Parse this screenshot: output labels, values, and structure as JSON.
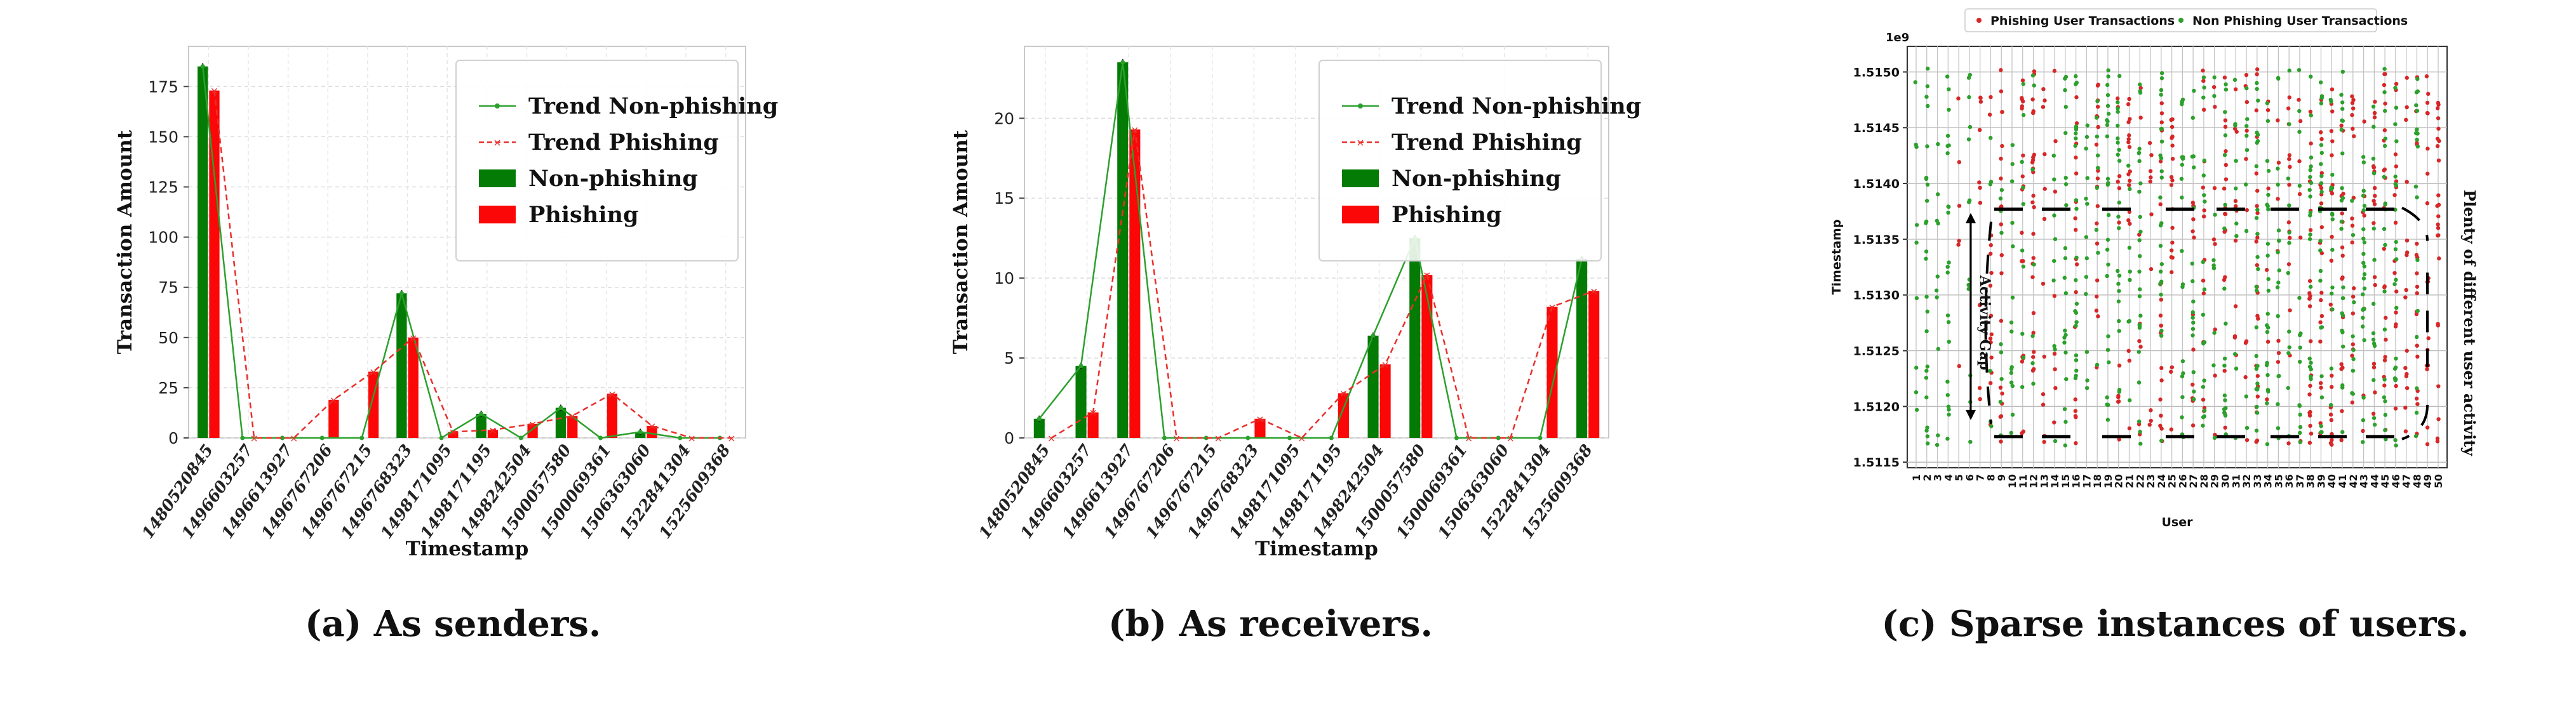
{
  "panels": [
    {
      "caption": "(a) As senders.",
      "chart_data": {
        "type": "bar",
        "categories": [
          "1480520845",
          "1496603257",
          "1496613927",
          "1496767206",
          "1496767215",
          "1496768323",
          "1498171095",
          "1498171195",
          "1498242504",
          "1500057580",
          "1500069361",
          "1506363060",
          "1522841304",
          "1525609368"
        ],
        "series": [
          {
            "name": "Non-phishing",
            "type": "bar",
            "values": [
              185,
              0,
              0,
              0,
              0,
              72,
              0,
              12,
              0,
              15,
              0,
              3,
              0,
              0
            ]
          },
          {
            "name": "Phishing",
            "type": "bar",
            "values": [
              173,
              0,
              0,
              19,
              33,
              50,
              3,
              4,
              7,
              11,
              22,
              6,
              0,
              0
            ]
          },
          {
            "name": "Trend Non-phishing",
            "type": "line",
            "values": [
              185,
              0,
              0,
              0,
              0,
              72,
              0,
              12,
              0,
              15,
              0,
              3,
              0,
              0
            ]
          },
          {
            "name": "Trend Phishing",
            "type": "line",
            "values": [
              173,
              0,
              0,
              19,
              33,
              50,
              3,
              4,
              7,
              11,
              22,
              6,
              0,
              0
            ]
          }
        ],
        "xlabel": "Timestamp",
        "ylabel": "Transaction Amount",
        "ylim": [
          0,
          195
        ],
        "yticks": [
          0,
          25,
          50,
          75,
          100,
          125,
          150,
          175
        ],
        "grid": true,
        "legend_position": "top-right"
      }
    },
    {
      "caption": "(b) As receivers.",
      "chart_data": {
        "type": "bar",
        "categories": [
          "1480520845",
          "1496603257",
          "1496613927",
          "1496767206",
          "1496767215",
          "1496768323",
          "1498171095",
          "1498171195",
          "1498242504",
          "1500057580",
          "1500069361",
          "1506363060",
          "1522841304",
          "1525609368"
        ],
        "series": [
          {
            "name": "Non-phishing",
            "type": "bar",
            "values": [
              1.2,
              4.5,
              23.5,
              0,
              0,
              0,
              0,
              0,
              6.4,
              12.5,
              0,
              0,
              0,
              11.2
            ]
          },
          {
            "name": "Phishing",
            "type": "bar",
            "values": [
              0,
              1.6,
              19.3,
              0,
              0,
              1.2,
              0,
              2.8,
              4.6,
              10.2,
              0,
              0,
              8.2,
              9.2
            ]
          },
          {
            "name": "Trend Non-phishing",
            "type": "line",
            "values": [
              1.2,
              4.5,
              23.5,
              0,
              0,
              0,
              0,
              0,
              6.4,
              12.5,
              0,
              0,
              0,
              11.2
            ]
          },
          {
            "name": "Trend Phishing",
            "type": "line",
            "values": [
              0,
              1.6,
              19.3,
              0,
              0,
              1.2,
              0,
              2.8,
              4.6,
              10.2,
              0,
              0,
              8.2,
              9.2
            ]
          }
        ],
        "xlabel": "Timestamp",
        "ylabel": "Transaction Amount",
        "ylim": [
          0,
          24.5
        ],
        "yticks": [
          0,
          5,
          10,
          15,
          20
        ],
        "grid": true,
        "legend_position": "top-right"
      }
    },
    {
      "caption": "(c) Sparse instances of users.",
      "chart_data": {
        "type": "scatter",
        "xlabel": "User",
        "ylabel": "Timestamp",
        "y_offset_label": "1e9",
        "x_range": [
          1,
          50
        ],
        "xticks": [
          "1",
          "2",
          "3",
          "4",
          "5",
          "6",
          "7",
          "8",
          "9",
          "10",
          "11",
          "12",
          "13",
          "14",
          "15",
          "16",
          "17",
          "18",
          "19",
          "20",
          "21",
          "22",
          "23",
          "24",
          "25",
          "26",
          "27",
          "28",
          "29",
          "30",
          "31",
          "32",
          "33",
          "34",
          "35",
          "36",
          "37",
          "38",
          "39",
          "40",
          "41",
          "42",
          "43",
          "44",
          "45",
          "46",
          "47",
          "48",
          "49",
          "50"
        ],
        "ylim": [
          1.51145,
          1.51523
        ],
        "yticks": [
          "1.5115",
          "1.5120",
          "1.5125",
          "1.5130",
          "1.5135",
          "1.5140",
          "1.5145",
          "1.5150"
        ],
        "ytick_values": [
          1.5115,
          1.512,
          1.5125,
          1.513,
          1.5135,
          1.514,
          1.5145,
          1.515
        ],
        "grid": true,
        "legend_position": "top-center",
        "series": [
          {
            "name": "Phishing User Transactions",
            "color": "#d62728",
            "users": [
              5,
              7,
              8,
              9,
              11,
              12,
              13,
              14,
              16,
              18,
              20,
              21,
              22,
              23,
              24,
              25,
              27,
              28,
              29,
              30,
              31,
              32,
              33,
              34,
              35,
              36,
              37,
              38,
              39,
              40,
              41,
              42,
              43,
              44,
              45,
              46,
              47,
              48,
              49,
              50
            ]
          },
          {
            "name": "Non Phishing User Transactions",
            "color": "#2ca02c",
            "users": [
              1,
              2,
              3,
              4,
              6,
              8,
              9,
              10,
              11,
              12,
              14,
              15,
              16,
              17,
              18,
              19,
              20,
              21,
              22,
              24,
              26,
              27,
              28,
              29,
              30,
              31,
              32,
              33,
              34,
              35,
              36,
              37,
              38,
              39,
              40,
              41,
              42,
              43,
              44,
              45,
              46,
              48
            ]
          }
        ],
        "annotations": [
          "Activity Gap",
          "Plenty of different user activity"
        ]
      }
    }
  ],
  "colors": {
    "nonphishing_bar": "#047b04",
    "phishing_bar": "#fb0707",
    "trend_nonphishing": "#2ca02c",
    "trend_phishing": "#e8302c",
    "scatter_phishing": "#d62728",
    "scatter_nonphishing": "#2ca02c"
  }
}
